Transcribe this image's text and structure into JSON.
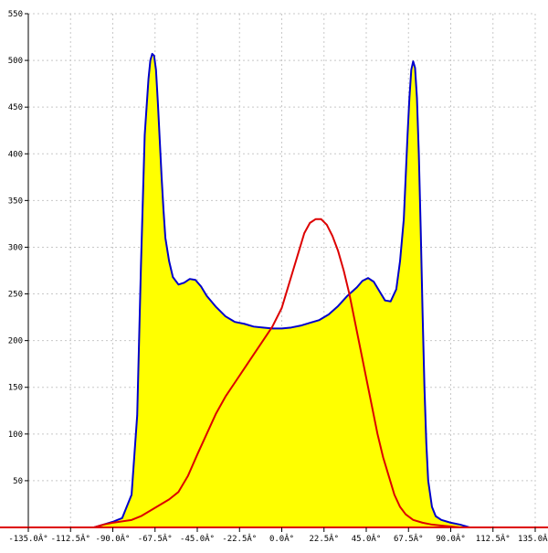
{
  "chart_data": {
    "type": "area",
    "xlim": [
      -135,
      135
    ],
    "ylim": [
      0,
      550
    ],
    "grid": true,
    "x_ticks": [
      {
        "value": -135,
        "label": "-135.0Â°"
      },
      {
        "value": -112.5,
        "label": "-112.5Â°"
      },
      {
        "value": -90,
        "label": "-90.0Â°"
      },
      {
        "value": -67.5,
        "label": "-67.5Â°"
      },
      {
        "value": -45,
        "label": "-45.0Â°"
      },
      {
        "value": -22.5,
        "label": "-22.5Â°"
      },
      {
        "value": 0,
        "label": "0.0Â°"
      },
      {
        "value": 22.5,
        "label": "22.5Â°"
      },
      {
        "value": 45,
        "label": "45.0Â°"
      },
      {
        "value": 67.5,
        "label": "67.5Â°"
      },
      {
        "value": 90,
        "label": "90.0Â°"
      },
      {
        "value": 112.5,
        "label": "112.5Â°"
      },
      {
        "value": 135,
        "label": "135.0Â°"
      }
    ],
    "y_ticks": [
      {
        "value": 50,
        "label": "50"
      },
      {
        "value": 100,
        "label": "100"
      },
      {
        "value": 150,
        "label": "150"
      },
      {
        "value": 200,
        "label": "200"
      },
      {
        "value": 250,
        "label": "250"
      },
      {
        "value": 300,
        "label": "300"
      },
      {
        "value": 350,
        "label": "350"
      },
      {
        "value": 400,
        "label": "400"
      },
      {
        "value": 450,
        "label": "450"
      },
      {
        "value": 500,
        "label": "500"
      },
      {
        "value": 550,
        "label": "550"
      }
    ],
    "series": [
      {
        "color": "#0000cc",
        "fill": "#ffff00",
        "x": [
          -135,
          -100,
          -95,
          -90,
          -85,
          -80,
          -77,
          -75,
          -73,
          -71,
          -70,
          -69,
          -68,
          -67,
          -66,
          -65,
          -64,
          -63,
          -62,
          -60,
          -58,
          -55,
          -52,
          -49,
          -46,
          -43,
          -40,
          -35,
          -30,
          -25,
          -20,
          -15,
          -10,
          -5,
          0,
          5,
          10,
          15,
          20,
          25,
          30,
          35,
          40,
          43,
          46,
          49,
          52,
          55,
          58,
          61,
          63,
          65,
          66,
          67,
          68,
          69,
          70,
          71,
          72,
          73,
          74,
          75,
          76,
          77,
          78,
          80,
          82,
          85,
          90,
          95,
          100,
          135
        ],
        "y": [
          0,
          0,
          3,
          6,
          10,
          35,
          120,
          280,
          420,
          480,
          500,
          507,
          505,
          490,
          455,
          415,
          375,
          340,
          310,
          285,
          268,
          260,
          262,
          266,
          265,
          258,
          248,
          236,
          226,
          220,
          218,
          215,
          214,
          213,
          213,
          214,
          216,
          219,
          222,
          228,
          237,
          248,
          257,
          264,
          267,
          263,
          253,
          243,
          242,
          255,
          285,
          330,
          375,
          420,
          460,
          490,
          499,
          492,
          460,
          400,
          320,
          230,
          150,
          90,
          50,
          22,
          12,
          8,
          5,
          3,
          0,
          0
        ]
      },
      {
        "color": "#dd0000",
        "x": [
          -135,
          -100,
          -95,
          -90,
          -80,
          -75,
          -70,
          -65,
          -60,
          -55,
          -50,
          -45,
          -40,
          -35,
          -30,
          -25,
          -20,
          -15,
          -10,
          -5,
          0,
          3,
          6,
          9,
          12,
          15,
          18,
          21,
          24,
          27,
          30,
          33,
          36,
          39,
          42,
          45,
          48,
          51,
          54,
          57,
          60,
          63,
          66,
          70,
          75,
          80,
          85,
          90,
          95,
          100,
          135
        ],
        "y": [
          0,
          0,
          3,
          5,
          8,
          12,
          18,
          24,
          30,
          38,
          55,
          78,
          100,
          122,
          140,
          155,
          170,
          185,
          200,
          215,
          235,
          255,
          275,
          295,
          315,
          326,
          330,
          330,
          324,
          312,
          296,
          275,
          250,
          220,
          190,
          160,
          130,
          100,
          75,
          55,
          35,
          22,
          14,
          8,
          5,
          3,
          2,
          1,
          0,
          0,
          0
        ]
      }
    ]
  }
}
